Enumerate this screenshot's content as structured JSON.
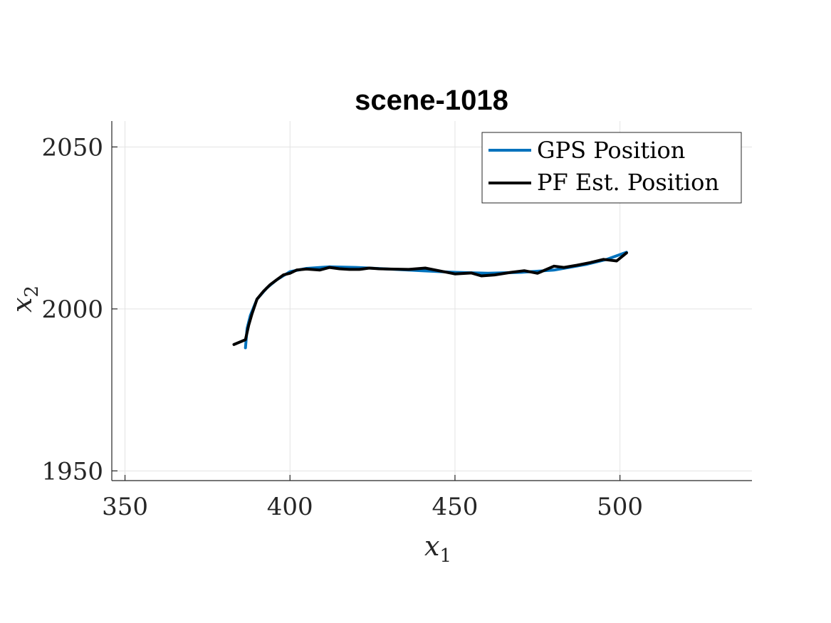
{
  "chart_data": {
    "type": "line",
    "title": "scene-1018",
    "xlabel": {
      "base": "x",
      "sub": "1"
    },
    "ylabel": {
      "base": "x",
      "sub": "2"
    },
    "xlim": [
      346,
      540
    ],
    "ylim": [
      1947,
      2058
    ],
    "xticks": [
      350,
      400,
      450,
      500
    ],
    "yticks": [
      1950,
      2000,
      2050
    ],
    "grid": true,
    "legend_position": "top-right",
    "series": [
      {
        "name": "GPS Position",
        "color": "#0072BD",
        "points": [
          [
            386.5,
            1988
          ],
          [
            387,
            1994
          ],
          [
            388,
            1998
          ],
          [
            390,
            2003
          ],
          [
            393,
            2006.5
          ],
          [
            396,
            2009
          ],
          [
            400,
            2011.5
          ],
          [
            405,
            2012.5
          ],
          [
            412,
            2013
          ],
          [
            420,
            2012.8
          ],
          [
            430,
            2012.3
          ],
          [
            440,
            2011.8
          ],
          [
            450,
            2011.3
          ],
          [
            460,
            2011
          ],
          [
            470,
            2011.3
          ],
          [
            480,
            2012
          ],
          [
            490,
            2013.8
          ],
          [
            496,
            2015.3
          ],
          [
            502,
            2017.5
          ]
        ]
      },
      {
        "name": "PF Est. Position",
        "color": "#000000",
        "points": [
          [
            383,
            1989
          ],
          [
            386.5,
            1990.5
          ],
          [
            387.5,
            1995
          ],
          [
            388.5,
            1998.5
          ],
          [
            390,
            2003
          ],
          [
            392,
            2005.5
          ],
          [
            394,
            2007.5
          ],
          [
            396,
            2009
          ],
          [
            398,
            2010.5
          ],
          [
            400,
            2011
          ],
          [
            402,
            2012
          ],
          [
            405,
            2012.3
          ],
          [
            409,
            2012
          ],
          [
            412,
            2012.8
          ],
          [
            415,
            2012.4
          ],
          [
            418,
            2012.2
          ],
          [
            421,
            2012.2
          ],
          [
            424,
            2012.6
          ],
          [
            427,
            2012.4
          ],
          [
            430,
            2012.3
          ],
          [
            436,
            2012.2
          ],
          [
            441,
            2012.6
          ],
          [
            446,
            2011.6
          ],
          [
            450,
            2010.8
          ],
          [
            455,
            2011.1
          ],
          [
            458,
            2010.2
          ],
          [
            462,
            2010.5
          ],
          [
            467,
            2011.3
          ],
          [
            471,
            2011.8
          ],
          [
            475,
            2011.0
          ],
          [
            480,
            2013.2
          ],
          [
            483,
            2012.8
          ],
          [
            487,
            2013.5
          ],
          [
            491,
            2014.3
          ],
          [
            495,
            2015.3
          ],
          [
            499,
            2014.8
          ],
          [
            502,
            2017.3
          ]
        ]
      }
    ]
  }
}
